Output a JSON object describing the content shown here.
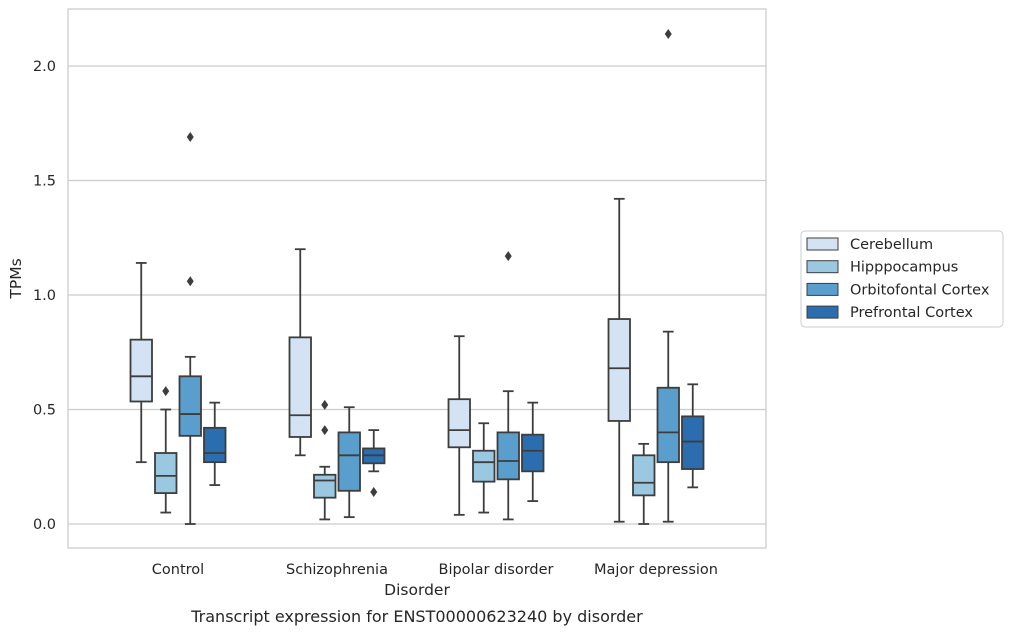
{
  "chart_data": {
    "type": "box",
    "caption": "Transcript expression for ENST00000623240 by disorder",
    "xlabel": "Disorder",
    "ylabel": "TPMs",
    "ylim": [
      -0.1,
      2.25
    ],
    "yticks": [
      "0.0",
      "0.5",
      "1.0",
      "1.5",
      "2.0"
    ],
    "grid": "horizontal",
    "legend_position": "right-center",
    "categories": [
      "Control",
      "Schizophrenia",
      "Bipolar disorder",
      "Major depression"
    ],
    "series": [
      {
        "name": "Cerebellum",
        "color": "#d3e3f3",
        "boxes": [
          {
            "whisker_low": 0.27,
            "q1": 0.535,
            "median": 0.645,
            "q3": 0.805,
            "whisker_high": 1.14,
            "outliers": []
          },
          {
            "whisker_low": 0.3,
            "q1": 0.38,
            "median": 0.475,
            "q3": 0.815,
            "whisker_high": 1.2,
            "outliers": []
          },
          {
            "whisker_low": 0.04,
            "q1": 0.335,
            "median": 0.41,
            "q3": 0.545,
            "whisker_high": 0.82,
            "outliers": []
          },
          {
            "whisker_low": 0.01,
            "q1": 0.45,
            "median": 0.68,
            "q3": 0.895,
            "whisker_high": 1.42,
            "outliers": []
          }
        ]
      },
      {
        "name": "Hipppocampus",
        "color": "#9ac8e0",
        "boxes": [
          {
            "whisker_low": 0.05,
            "q1": 0.135,
            "median": 0.21,
            "q3": 0.31,
            "whisker_high": 0.5,
            "outliers": [
              0.58
            ]
          },
          {
            "whisker_low": 0.02,
            "q1": 0.115,
            "median": 0.19,
            "q3": 0.215,
            "whisker_high": 0.25,
            "outliers": [
              0.41,
              0.52
            ]
          },
          {
            "whisker_low": 0.05,
            "q1": 0.185,
            "median": 0.27,
            "q3": 0.32,
            "whisker_high": 0.44,
            "outliers": []
          },
          {
            "whisker_low": 0.0,
            "q1": 0.125,
            "median": 0.18,
            "q3": 0.3,
            "whisker_high": 0.35,
            "outliers": []
          }
        ]
      },
      {
        "name": "Orbitofontal Cortex",
        "color": "#5a9ecd",
        "boxes": [
          {
            "whisker_low": 0.0,
            "q1": 0.385,
            "median": 0.48,
            "q3": 0.645,
            "whisker_high": 0.73,
            "outliers": [
              1.06,
              1.69
            ]
          },
          {
            "whisker_low": 0.03,
            "q1": 0.145,
            "median": 0.3,
            "q3": 0.4,
            "whisker_high": 0.51,
            "outliers": []
          },
          {
            "whisker_low": 0.02,
            "q1": 0.195,
            "median": 0.275,
            "q3": 0.4,
            "whisker_high": 0.58,
            "outliers": [
              1.17
            ]
          },
          {
            "whisker_low": 0.01,
            "q1": 0.27,
            "median": 0.4,
            "q3": 0.595,
            "whisker_high": 0.84,
            "outliers": [
              2.14
            ]
          }
        ]
      },
      {
        "name": "Prefrontal Cortex",
        "color": "#2a6eb0",
        "boxes": [
          {
            "whisker_low": 0.17,
            "q1": 0.27,
            "median": 0.31,
            "q3": 0.42,
            "whisker_high": 0.53,
            "outliers": []
          },
          {
            "whisker_low": 0.23,
            "q1": 0.265,
            "median": 0.3,
            "q3": 0.33,
            "whisker_high": 0.41,
            "outliers": [
              0.14
            ]
          },
          {
            "whisker_low": 0.1,
            "q1": 0.23,
            "median": 0.32,
            "q3": 0.39,
            "whisker_high": 0.53,
            "outliers": []
          },
          {
            "whisker_low": 0.16,
            "q1": 0.24,
            "median": 0.36,
            "q3": 0.47,
            "whisker_high": 0.61,
            "outliers": []
          }
        ]
      }
    ]
  }
}
